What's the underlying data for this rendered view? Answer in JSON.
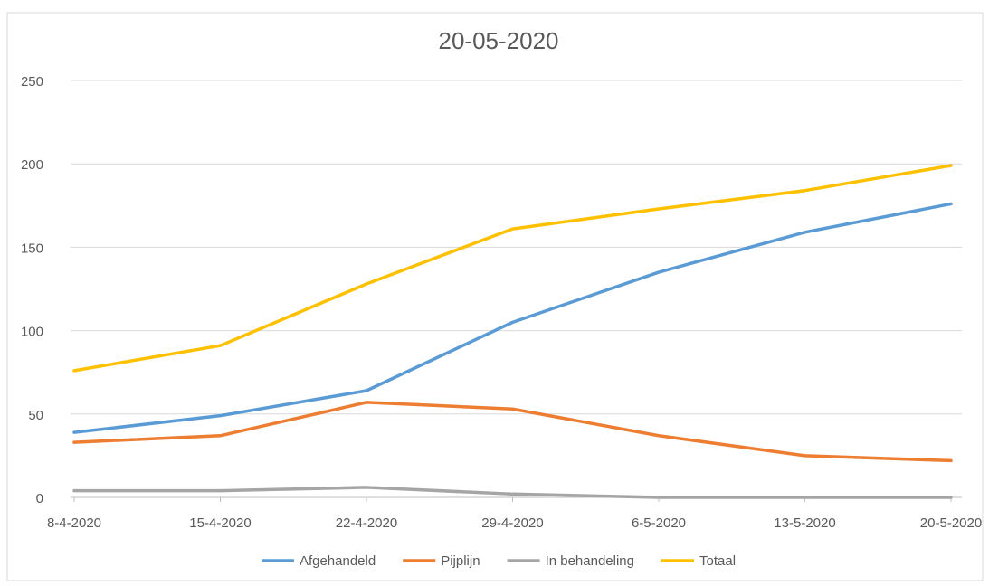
{
  "chart_data": {
    "type": "line",
    "title": "20-05-2020",
    "categories": [
      "8-4-2020",
      "15-4-2020",
      "22-4-2020",
      "29-4-2020",
      "6-5-2020",
      "13-5-2020",
      "20-5-2020"
    ],
    "yticks": [
      "0",
      "50",
      "100",
      "150",
      "200",
      "250"
    ],
    "ylim": [
      0,
      250
    ],
    "grid": true,
    "legend_position": "bottom",
    "series": [
      {
        "name": "Afgehandeld",
        "color": "#5b9bd5",
        "values": [
          39,
          49,
          64,
          105,
          135,
          159,
          176
        ]
      },
      {
        "name": "Pijplijn",
        "color": "#ed7d31",
        "values": [
          33,
          37,
          57,
          53,
          37,
          25,
          22
        ]
      },
      {
        "name": "In behandeling",
        "color": "#a5a5a5",
        "values": [
          4,
          4,
          6,
          2,
          0,
          0,
          0
        ]
      },
      {
        "name": "Totaal",
        "color": "#ffc000",
        "values": [
          76,
          91,
          128,
          161,
          173,
          184,
          199
        ]
      }
    ]
  }
}
